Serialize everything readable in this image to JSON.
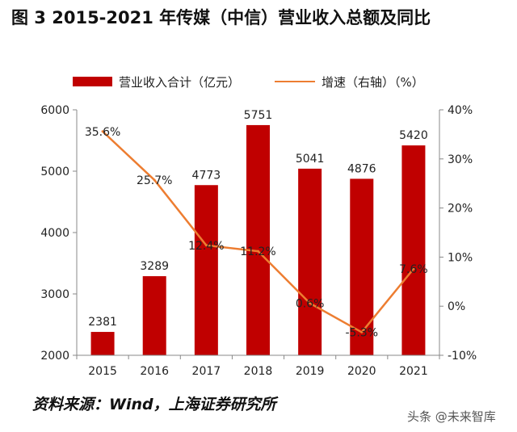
{
  "figure": {
    "title": "图 3 2015-2021 年传媒（中信）营业收入总额及同比",
    "source": "资料来源：Wind，上海证券研究所",
    "watermark": "头条 @未来智库"
  },
  "colors": {
    "bar": "#C00000",
    "line": "#ED7D31",
    "axis": "#888888"
  },
  "chart_data": {
    "type": "bar",
    "categories": [
      "2015",
      "2016",
      "2017",
      "2018",
      "2019",
      "2020",
      "2021"
    ],
    "series": [
      {
        "name": "营业收入合计（亿元）",
        "type": "bar",
        "axis": "left",
        "values": [
          2381,
          3289,
          4773,
          5751,
          5041,
          4876,
          5420
        ]
      },
      {
        "name": "增速（右轴）（%）",
        "type": "line",
        "axis": "right",
        "values": [
          35.6,
          25.7,
          12.4,
          11.2,
          0.6,
          -5.3,
          7.6
        ]
      }
    ],
    "bar_labels": [
      "2381",
      "3289",
      "4773",
      "5751",
      "5041",
      "4876",
      "5420"
    ],
    "line_labels": [
      "35.6%",
      "25.7%",
      "12.4%",
      "11.2%",
      "0.6%",
      "-5.3%",
      "7.6%"
    ],
    "ylim_left": [
      2000,
      6000
    ],
    "yticks_left": [
      "2000",
      "3000",
      "4000",
      "5000",
      "6000"
    ],
    "yticks_left_values": [
      2000,
      3000,
      4000,
      5000,
      6000
    ],
    "ylim_right": [
      -10,
      40
    ],
    "yticks_right": [
      "-10%",
      "0%",
      "10%",
      "20%",
      "30%",
      "40%"
    ],
    "yticks_right_values": [
      -10,
      0,
      10,
      20,
      30,
      40
    ],
    "legend_position": "top",
    "grid": false
  }
}
